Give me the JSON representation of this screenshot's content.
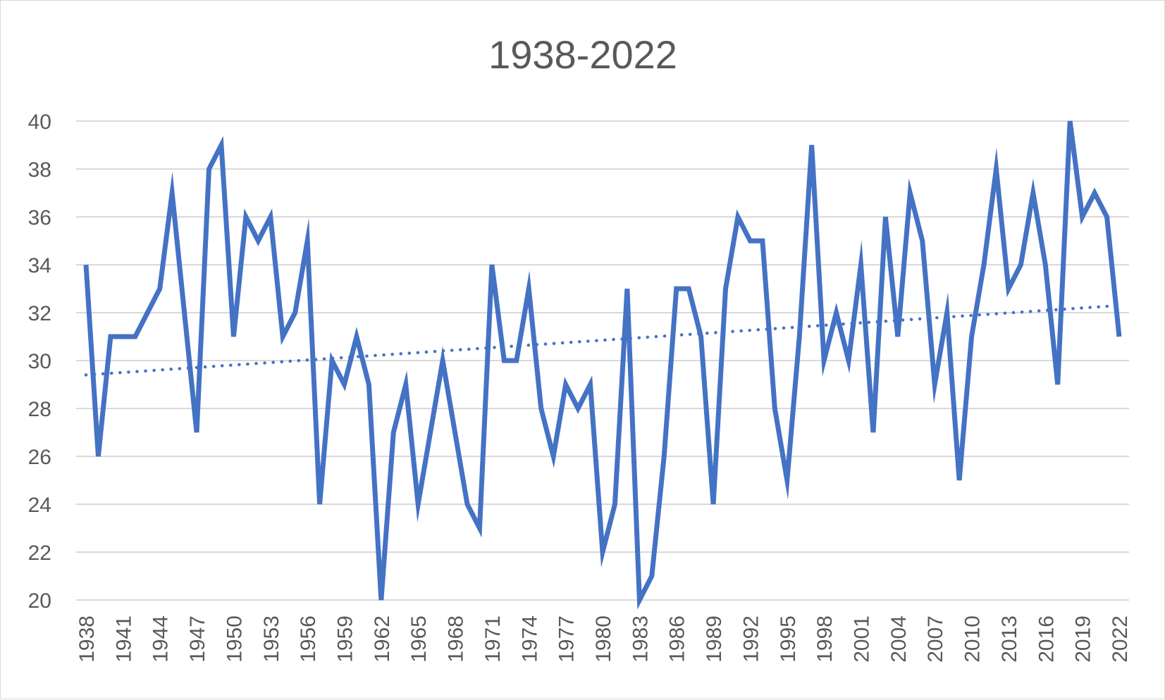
{
  "chart_data": {
    "type": "line",
    "title": "1938-2022",
    "xlabel": "",
    "ylabel": "",
    "ylim": [
      20,
      40
    ],
    "y_ticks": [
      20,
      22,
      24,
      26,
      28,
      30,
      32,
      34,
      36,
      38,
      40
    ],
    "x_tick_labels": [
      "1938",
      "1941",
      "1944",
      "1947",
      "1950",
      "1953",
      "1956",
      "1959",
      "1962",
      "1965",
      "1968",
      "1971",
      "1974",
      "1977",
      "1980",
      "1983",
      "1986",
      "1989",
      "1992",
      "1995",
      "1998",
      "2001",
      "2004",
      "2007",
      "2010",
      "2013",
      "2016",
      "2019",
      "2022"
    ],
    "grid": true,
    "legend": "none",
    "colors": {
      "series": "#4472C4",
      "grid": "#d9d9d9",
      "text": "#595959"
    },
    "x": [
      1938,
      1939,
      1940,
      1941,
      1942,
      1943,
      1944,
      1945,
      1946,
      1947,
      1948,
      1949,
      1950,
      1951,
      1952,
      1953,
      1954,
      1955,
      1956,
      1957,
      1958,
      1959,
      1960,
      1961,
      1962,
      1963,
      1964,
      1965,
      1966,
      1967,
      1968,
      1969,
      1970,
      1971,
      1972,
      1973,
      1974,
      1975,
      1976,
      1977,
      1978,
      1979,
      1980,
      1981,
      1982,
      1983,
      1984,
      1985,
      1986,
      1987,
      1988,
      1989,
      1990,
      1991,
      1992,
      1993,
      1994,
      1995,
      1996,
      1997,
      1998,
      1999,
      2000,
      2001,
      2002,
      2003,
      2004,
      2005,
      2006,
      2007,
      2008,
      2009,
      2010,
      2011,
      2012,
      2013,
      2014,
      2015,
      2016,
      2017,
      2018,
      2019,
      2020,
      2021,
      2022
    ],
    "series": [
      {
        "values": [
          34,
          26,
          31,
          31,
          31,
          32,
          33,
          37,
          32,
          27,
          38,
          39,
          31,
          36,
          35,
          36,
          31,
          32,
          35,
          24,
          30,
          29,
          31,
          29,
          20,
          27,
          29,
          24,
          27,
          30,
          27,
          24,
          23,
          34,
          30,
          30,
          33,
          28,
          26,
          29,
          28,
          29,
          22,
          24,
          33,
          20,
          21,
          26,
          33,
          33,
          31,
          24,
          33,
          36,
          35,
          35,
          28,
          25,
          31,
          39,
          30,
          32,
          30,
          34,
          27,
          36,
          31,
          37,
          35,
          29,
          32,
          25,
          31,
          34,
          38,
          33,
          34,
          37,
          34,
          29,
          40,
          36,
          37,
          36,
          31
        ]
      }
    ],
    "trendline": {
      "type": "linear",
      "style": "dotted",
      "start": {
        "x": 1938,
        "y": 29.4
      },
      "end": {
        "x": 2022,
        "y": 32.3
      }
    }
  }
}
